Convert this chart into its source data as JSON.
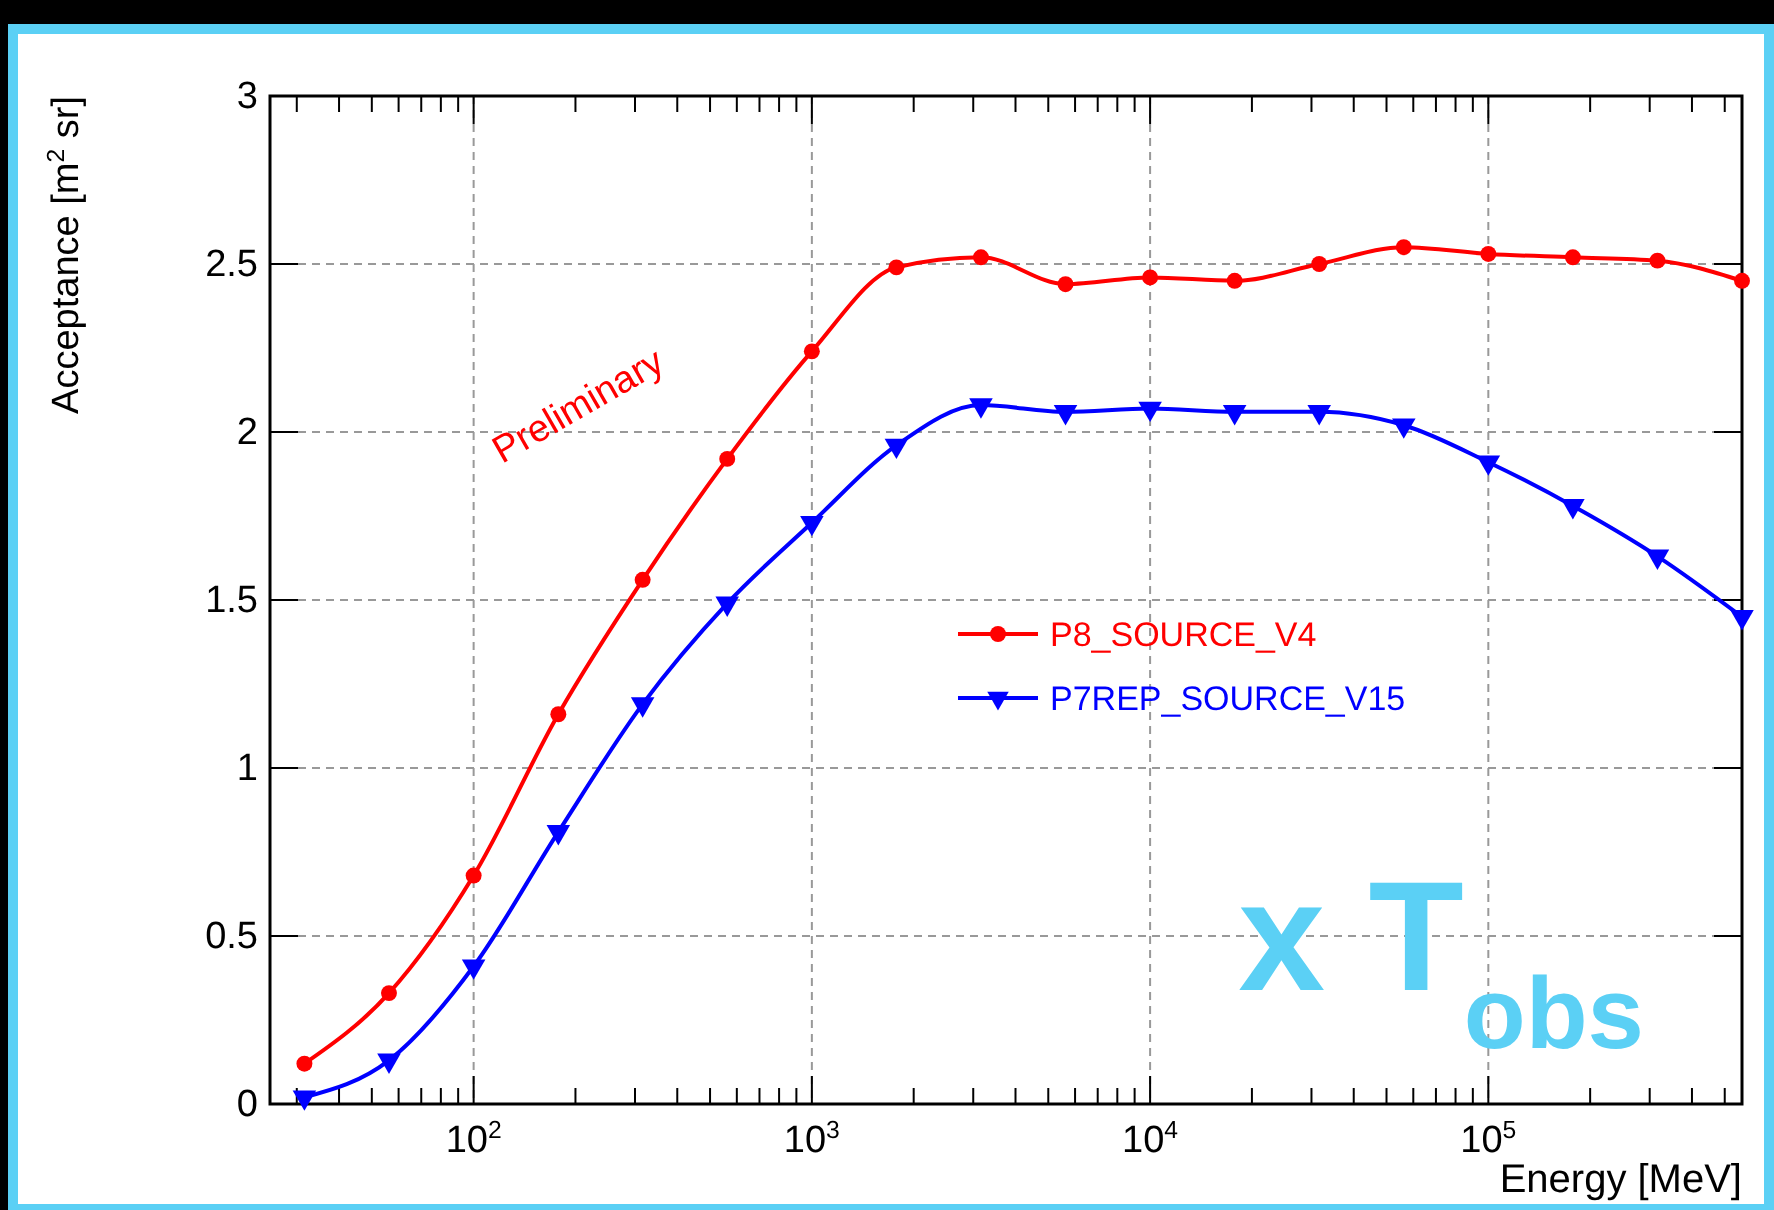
{
  "chart_data": {
    "type": "line",
    "xlabel": "Energy [MeV]",
    "ylabel": "Acceptance [m$^{2}$ sr]",
    "log": "x",
    "grid": true,
    "legend": "right",
    "line_style": "solid",
    "x": [
      31.6,
      56.2,
      100,
      178,
      316,
      562,
      1000,
      1778,
      3162,
      5623,
      10000,
      17783,
      31623,
      56234,
      100000,
      177828,
      316228,
      562341
    ],
    "xlim": [
      25,
      562341
    ],
    "xticks": [
      {
        "value": 30,
        "label": null
      },
      {
        "value": 40,
        "label": null
      },
      {
        "value": 50,
        "label": null
      },
      {
        "value": 60,
        "label": null
      },
      {
        "value": 70,
        "label": null
      },
      {
        "value": 80,
        "label": null
      },
      {
        "value": 90,
        "label": null
      },
      {
        "value": 100,
        "label": "10$^{2}$"
      },
      {
        "value": 200,
        "label": null
      },
      {
        "value": 300,
        "label": null
      },
      {
        "value": 400,
        "label": null
      },
      {
        "value": 500,
        "label": null
      },
      {
        "value": 600,
        "label": null
      },
      {
        "value": 700,
        "label": null
      },
      {
        "value": 800,
        "label": null
      },
      {
        "value": 900,
        "label": null
      },
      {
        "value": 1000,
        "label": "10$^{3}$"
      },
      {
        "value": 2000,
        "label": null
      },
      {
        "value": 3000,
        "label": null
      },
      {
        "value": 4000,
        "label": null
      },
      {
        "value": 5000,
        "label": null
      },
      {
        "value": 6000,
        "label": null
      },
      {
        "value": 7000,
        "label": null
      },
      {
        "value": 8000,
        "label": null
      },
      {
        "value": 9000,
        "label": null
      },
      {
        "value": 10000,
        "label": "10$^{4}$"
      },
      {
        "value": 20000,
        "label": null
      },
      {
        "value": 30000,
        "label": null
      },
      {
        "value": 40000,
        "label": null
      },
      {
        "value": 50000,
        "label": null
      },
      {
        "value": 60000,
        "label": null
      },
      {
        "value": 70000,
        "label": null
      },
      {
        "value": 80000,
        "label": null
      },
      {
        "value": 90000,
        "label": null
      },
      {
        "value": 100000,
        "label": "10$^{5}$"
      },
      {
        "value": 200000,
        "label": null
      },
      {
        "value": 300000,
        "label": null
      },
      {
        "value": 400000,
        "label": null
      },
      {
        "value": 500000,
        "label": null
      }
    ],
    "ylim": [
      0,
      3
    ],
    "yticks": [
      0,
      0.5,
      1,
      1.5,
      2,
      2.5,
      3
    ],
    "annotations": [
      "Preliminary",
      "x T$_{obs}$"
    ],
    "series": [
      {
        "name": "P8_SOURCE_V4",
        "color": "#ff0000",
        "marker": "circle",
        "values": [
          0.12,
          0.33,
          0.68,
          1.16,
          1.56,
          1.92,
          2.24,
          2.49,
          2.52,
          2.44,
          2.46,
          2.45,
          2.5,
          2.55,
          2.53,
          2.52,
          2.51,
          2.45
        ]
      },
      {
        "name": "P7REP_SOURCE_V15",
        "color": "#0000ff",
        "marker": "triangle",
        "values": [
          0.02,
          0.13,
          0.41,
          0.81,
          1.19,
          1.49,
          1.73,
          1.96,
          2.08,
          2.06,
          2.07,
          2.06,
          2.06,
          2.02,
          1.91,
          1.78,
          1.63,
          1.45
        ]
      }
    ]
  }
}
